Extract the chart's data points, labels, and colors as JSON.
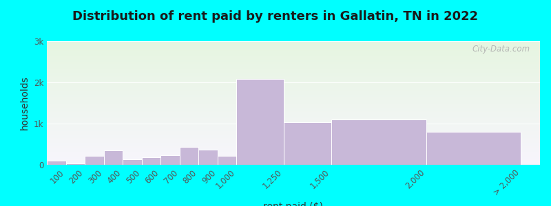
{
  "title": "Distribution of rent paid by renters in Gallatin, TN in 2022",
  "xlabel": "rent paid ($)",
  "ylabel": "households",
  "background_outer": "#00FFFF",
  "bar_color": "#c8b8d8",
  "bar_edge_color": "#ffffff",
  "bin_edges": [
    0,
    100,
    200,
    300,
    400,
    500,
    600,
    700,
    800,
    900,
    1000,
    1250,
    1500,
    2000,
    2500
  ],
  "values": [
    100,
    30,
    220,
    350,
    130,
    180,
    230,
    430,
    370,
    210,
    2080,
    1030,
    1100,
    800
  ],
  "tick_positions": [
    100,
    200,
    300,
    400,
    500,
    600,
    700,
    800,
    900,
    1000,
    1250,
    1500,
    2000,
    2500
  ],
  "tick_labels": [
    "100",
    "200",
    "300",
    "400",
    "500",
    "600",
    "700",
    "800",
    "900",
    "1,000",
    "1,250",
    "1,500",
    "2,000",
    "> 2,000"
  ],
  "ylim": [
    0,
    3000
  ],
  "xlim": [
    0,
    2600
  ],
  "yticks": [
    0,
    1000,
    2000,
    3000
  ],
  "ytick_labels": [
    "0",
    "1k",
    "2k",
    "3k"
  ],
  "title_fontsize": 13,
  "axis_label_fontsize": 10,
  "tick_fontsize": 8.5
}
